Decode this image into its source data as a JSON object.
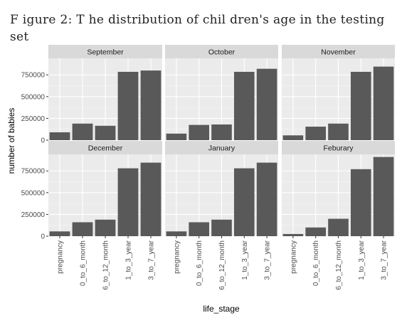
{
  "figure_title": "F igure 2: T he distribution of chil dren's age in the testing set",
  "chart_data": {
    "type": "bar",
    "facets": [
      {
        "month": "September",
        "values": [
          90000,
          190000,
          165000,
          785000,
          800000
        ]
      },
      {
        "month": "October",
        "values": [
          75000,
          175000,
          180000,
          785000,
          820000
        ]
      },
      {
        "month": "November",
        "values": [
          55000,
          155000,
          190000,
          785000,
          845000
        ]
      },
      {
        "month": "December",
        "values": [
          55000,
          160000,
          190000,
          780000,
          845000
        ]
      },
      {
        "month": "January",
        "values": [
          55000,
          160000,
          190000,
          780000,
          845000
        ]
      },
      {
        "month": "Feburary",
        "values": [
          25000,
          100000,
          200000,
          770000,
          910000
        ]
      }
    ],
    "categories": [
      "pregnancy",
      "0_to_6_month",
      "6_to_12_month",
      "1_to_3_year",
      "3_to_7_year"
    ],
    "yticks": [
      0,
      250000,
      500000,
      750000
    ],
    "ytick_labels": [
      "0",
      "250000",
      "500000",
      "750000"
    ],
    "ylim": [
      0,
      940000
    ],
    "xlabel": "life_stage",
    "ylabel": "number of babies",
    "grid": true,
    "colors": {
      "bar": "#595959",
      "panel": "#ebebeb",
      "strip": "#d9d9d9",
      "grid_major": "#ffffff",
      "grid_minor": "#f5f5f5"
    }
  }
}
